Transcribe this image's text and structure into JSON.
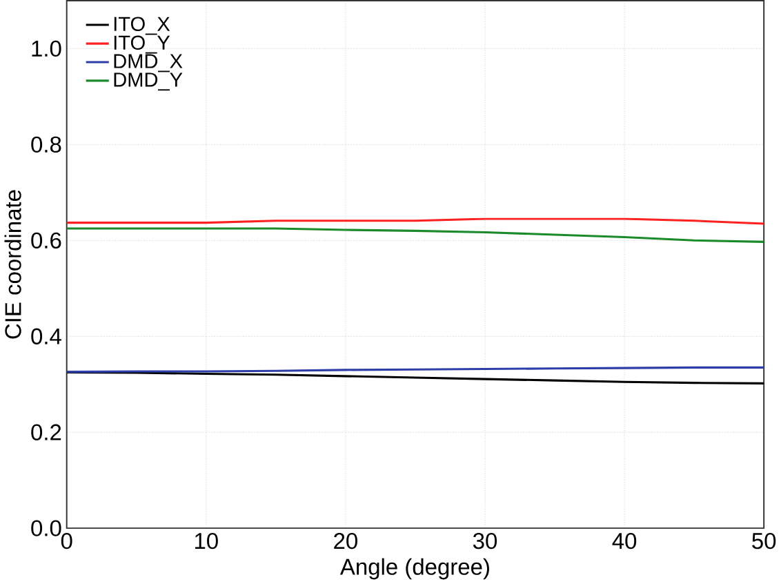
{
  "chart_data": {
    "type": "line",
    "xlabel": "Angle (degree)",
    "ylabel": "CIE coordinate",
    "x": [
      0,
      5,
      10,
      15,
      20,
      25,
      30,
      35,
      40,
      45,
      50
    ],
    "series": [
      {
        "name": "ITO_X",
        "color": "#000000",
        "values": [
          0.325,
          0.324,
          0.322,
          0.32,
          0.317,
          0.314,
          0.311,
          0.308,
          0.305,
          0.303,
          0.302
        ]
      },
      {
        "name": "ITO_Y",
        "color": "#ff2020",
        "values": [
          0.637,
          0.637,
          0.637,
          0.641,
          0.641,
          0.641,
          0.645,
          0.645,
          0.645,
          0.641,
          0.635
        ]
      },
      {
        "name": "DMD_X",
        "color": "#2e3ea8",
        "values": [
          0.326,
          0.327,
          0.327,
          0.328,
          0.33,
          0.331,
          0.332,
          0.333,
          0.334,
          0.335,
          0.335
        ]
      },
      {
        "name": "DMD_Y",
        "color": "#1a8a2a",
        "values": [
          0.625,
          0.625,
          0.625,
          0.625,
          0.622,
          0.62,
          0.617,
          0.612,
          0.607,
          0.6,
          0.597
        ]
      }
    ],
    "xlim": [
      0,
      50
    ],
    "ylim": [
      0,
      1.1
    ],
    "xticks": [
      0,
      10,
      20,
      30,
      40,
      50
    ],
    "yticks": [
      {
        "value": 0,
        "label": "0.0"
      },
      0.2,
      0.4,
      0.6,
      0.8,
      {
        "value": 1,
        "label": "1.0"
      }
    ],
    "grid": true,
    "legend": "top left",
    "line_style": "solid",
    "marker": "none"
  }
}
